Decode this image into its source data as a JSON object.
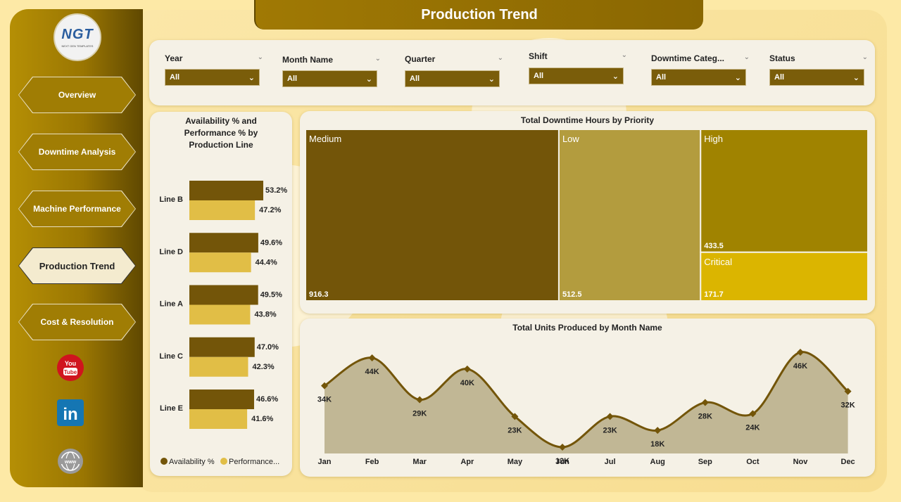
{
  "header": {
    "title": "Production Trend"
  },
  "logo": {
    "text": "NGT",
    "subtext": "NEXT GEN TEMPLATES"
  },
  "nav": [
    {
      "label": "Overview",
      "active": false
    },
    {
      "label": "Downtime Analysis",
      "active": false
    },
    {
      "label": "Machine Performance",
      "active": false
    },
    {
      "label": "Production Trend",
      "active": true
    },
    {
      "label": "Cost & Resolution",
      "active": false
    }
  ],
  "social": {
    "youtube": "You Tube",
    "linkedin": "in",
    "web": "www"
  },
  "filters": [
    {
      "label": "Year",
      "value": "All"
    },
    {
      "label": "Month Name",
      "value": "All"
    },
    {
      "label": "Quarter",
      "value": "All"
    },
    {
      "label": "Shift",
      "value": "All"
    },
    {
      "label": "Downtime Categ...",
      "value": "All"
    },
    {
      "label": "Status",
      "value": "All"
    }
  ],
  "colors": {
    "availability": "#735509",
    "performance": "#e1be46",
    "accent": "#a07904"
  },
  "chart_data": [
    {
      "type": "bar",
      "title": "Availability % and Performance % by Production Line",
      "categories": [
        "Line B",
        "Line D",
        "Line A",
        "Line C",
        "Line E"
      ],
      "series": [
        {
          "name": "Availability %",
          "values": [
            53.2,
            49.6,
            49.5,
            47.0,
            46.6
          ],
          "labels": [
            "53.2%",
            "49.6%",
            "49.5%",
            "47.0%",
            "46.6%"
          ]
        },
        {
          "name": "Performance...",
          "values": [
            47.2,
            44.4,
            43.8,
            42.3,
            41.6
          ],
          "labels": [
            "47.2%",
            "44.4%",
            "43.8%",
            "42.3%",
            "41.6%"
          ]
        }
      ]
    },
    {
      "type": "treemap",
      "title": "Total Downtime Hours by Priority",
      "items": [
        {
          "name": "Medium",
          "value": 916.3,
          "color": "#735509"
        },
        {
          "name": "Low",
          "value": 512.5,
          "color": "#b39c3e"
        },
        {
          "name": "High",
          "value": 433.5,
          "color": "#a08300"
        },
        {
          "name": "Critical",
          "value": 171.7,
          "color": "#dbb500"
        }
      ]
    },
    {
      "type": "area",
      "title": "Total Units Produced by Month Name",
      "categories": [
        "Jan",
        "Feb",
        "Mar",
        "Apr",
        "May",
        "Jun",
        "Jul",
        "Aug",
        "Sep",
        "Oct",
        "Nov",
        "Dec"
      ],
      "values": [
        34000,
        44000,
        29000,
        40000,
        23000,
        12000,
        23000,
        18000,
        28000,
        24000,
        46000,
        32000
      ],
      "labels": [
        "34K",
        "44K",
        "29K",
        "40K",
        "23K",
        "12K",
        "23K",
        "18K",
        "28K",
        "24K",
        "46K",
        "32K"
      ]
    }
  ]
}
